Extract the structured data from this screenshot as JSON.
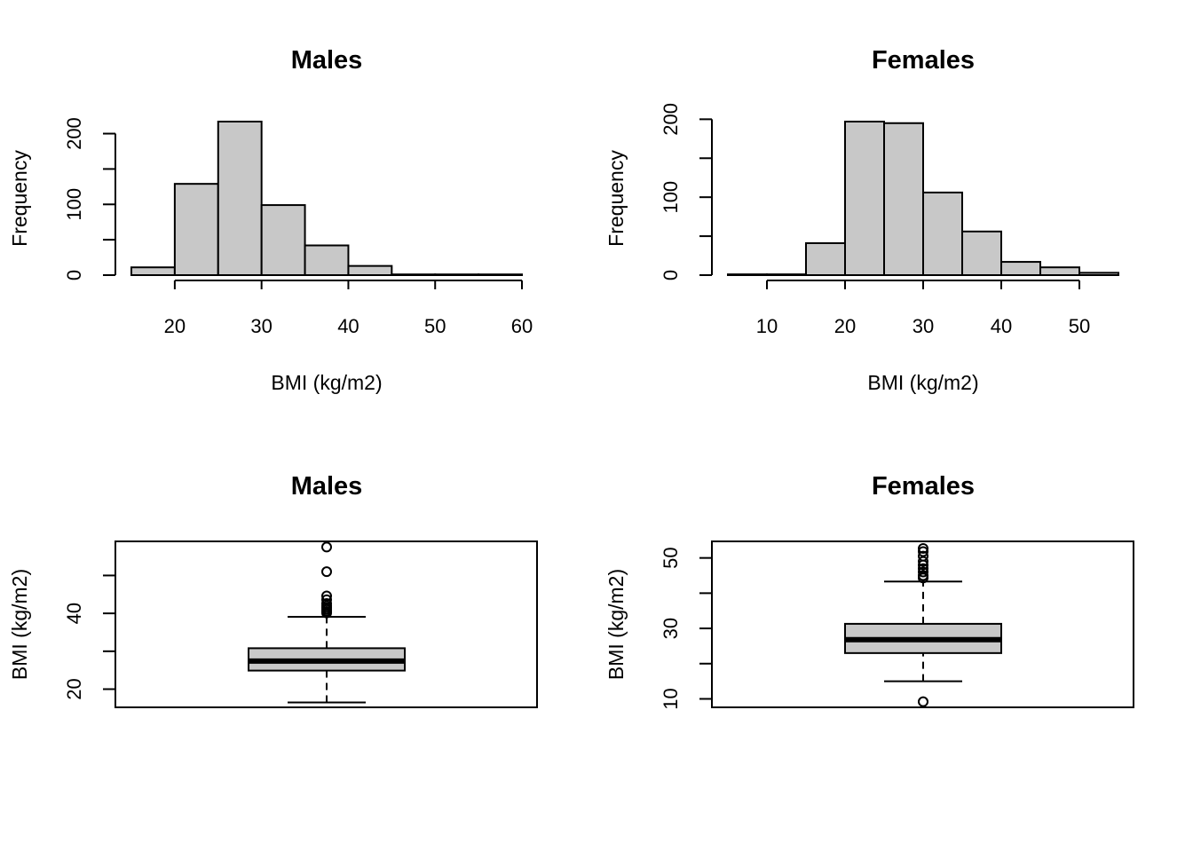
{
  "colors": {
    "fill": "#c8c8c8",
    "stroke": "#000000",
    "background": "#ffffff"
  },
  "chart_data": [
    {
      "type": "histogram",
      "title": "Males",
      "xlabel": "BMI (kg/m2)",
      "ylabel": "Frequency",
      "x_ticks": [
        20,
        30,
        40,
        50,
        60
      ],
      "y_ticks": [
        0,
        50,
        100,
        150,
        200
      ],
      "y_tick_labels": [
        "0",
        "",
        "100",
        "",
        "200"
      ],
      "bins": [
        [
          15,
          20
        ],
        [
          20,
          25
        ],
        [
          25,
          30
        ],
        [
          30,
          35
        ],
        [
          35,
          40
        ],
        [
          40,
          45
        ],
        [
          45,
          50
        ],
        [
          50,
          55
        ],
        [
          55,
          60
        ]
      ],
      "counts": [
        11,
        129,
        217,
        99,
        42,
        13,
        1,
        1,
        1
      ],
      "xlim": [
        15,
        60
      ],
      "ylim": [
        0,
        217
      ],
      "grid": false
    },
    {
      "type": "histogram",
      "title": "Females",
      "xlabel": "BMI (kg/m2)",
      "ylabel": "Frequency",
      "x_ticks": [
        10,
        20,
        30,
        40,
        50
      ],
      "y_ticks": [
        0,
        50,
        100,
        150,
        200
      ],
      "y_tick_labels": [
        "0",
        "",
        "100",
        "",
        "200"
      ],
      "bins": [
        [
          5,
          10
        ],
        [
          10,
          15
        ],
        [
          15,
          20
        ],
        [
          20,
          25
        ],
        [
          25,
          30
        ],
        [
          30,
          35
        ],
        [
          35,
          40
        ],
        [
          40,
          45
        ],
        [
          45,
          50
        ],
        [
          50,
          55
        ]
      ],
      "counts": [
        1,
        1,
        41,
        197,
        195,
        106,
        56,
        17,
        10,
        3
      ],
      "xlim": [
        5,
        55
      ],
      "ylim": [
        0,
        197
      ],
      "grid": false
    },
    {
      "type": "boxplot",
      "title": "Males",
      "ylabel": "BMI (kg/m2)",
      "y_ticks": [
        20,
        30,
        40,
        50
      ],
      "y_tick_labels": [
        "20",
        "",
        "40",
        ""
      ],
      "ylim": [
        15.2,
        59.0
      ],
      "whisker_low": 16.5,
      "q1": 24.9,
      "median": 27.4,
      "q3": 30.8,
      "whisker_high": 39.1,
      "outliers": [
        40.1,
        40.5,
        41.0,
        41.5,
        42.0,
        42.6,
        43.6,
        44.6,
        51.0,
        57.5
      ],
      "grid": false
    },
    {
      "type": "boxplot",
      "title": "Females",
      "ylabel": "BMI (kg/m2)",
      "y_ticks": [
        10,
        20,
        30,
        40,
        50
      ],
      "y_tick_labels": [
        "10",
        "",
        "30",
        "",
        "50"
      ],
      "ylim": [
        7.6,
        54.7
      ],
      "whisker_low": 15.0,
      "q1": 23.0,
      "median": 26.8,
      "q3": 31.3,
      "whisker_high": 43.3,
      "outliers": [
        9.2,
        44.3,
        45.0,
        46.0,
        47.0,
        48.0,
        49.0,
        50.5,
        51.8,
        52.7
      ],
      "grid": false
    }
  ]
}
